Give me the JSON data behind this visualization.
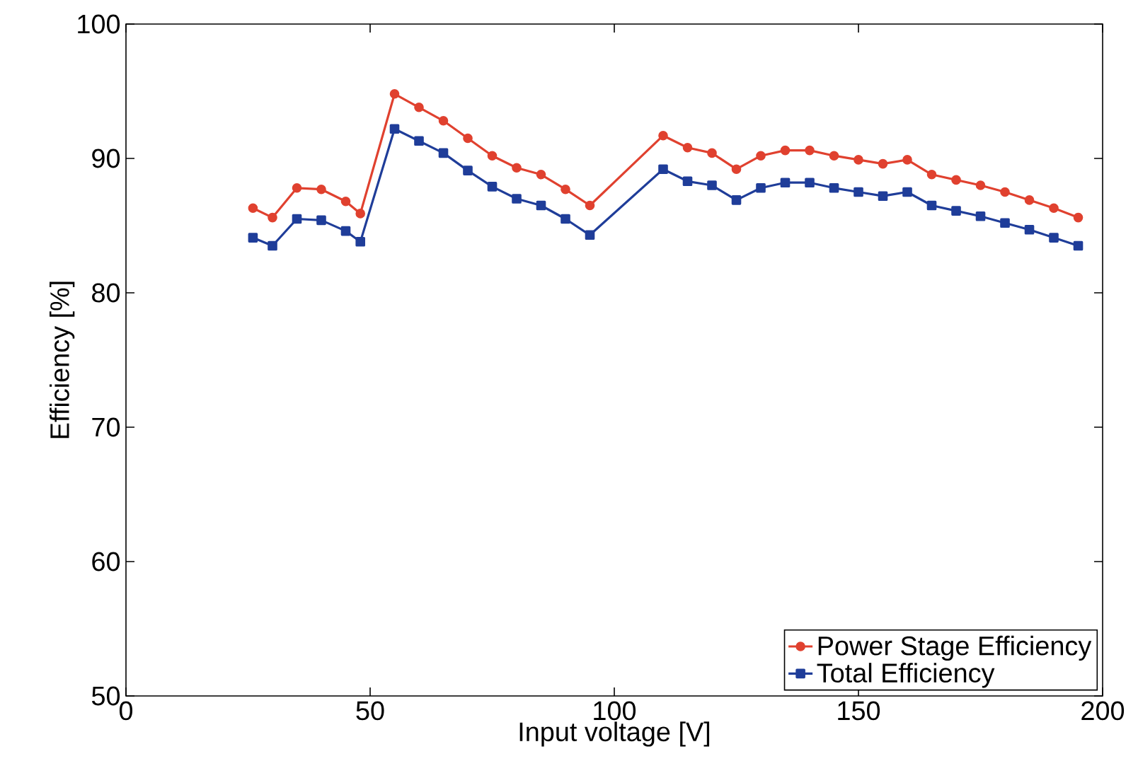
{
  "chart_data": {
    "type": "line",
    "xlabel": "Input voltage [V]",
    "ylabel": "Efficiency [%]",
    "x": [
      26,
      30,
      35,
      40,
      45,
      48,
      55,
      60,
      65,
      70,
      75,
      80,
      85,
      90,
      95,
      110,
      115,
      120,
      125,
      130,
      135,
      140,
      145,
      150,
      155,
      160,
      165,
      170,
      175,
      180,
      185,
      190,
      195
    ],
    "series": [
      {
        "name": "Power Stage Efficiency",
        "color": "#e0412f",
        "marker": "circle",
        "values": [
          86.3,
          85.6,
          87.8,
          87.7,
          86.8,
          85.9,
          94.8,
          93.8,
          92.8,
          91.5,
          90.2,
          89.3,
          88.8,
          87.7,
          86.5,
          91.7,
          90.8,
          90.4,
          89.2,
          90.2,
          90.6,
          90.6,
          90.2,
          89.9,
          89.6,
          89.9,
          88.8,
          88.4,
          88.0,
          87.5,
          86.9,
          86.3,
          85.6
        ]
      },
      {
        "name": "Total Efficiency",
        "color": "#1f3d99",
        "marker": "square",
        "values": [
          84.1,
          83.5,
          85.5,
          85.4,
          84.6,
          83.8,
          92.2,
          91.3,
          90.4,
          89.1,
          87.9,
          87.0,
          86.5,
          85.5,
          84.3,
          89.2,
          88.3,
          88.0,
          86.9,
          87.8,
          88.2,
          88.2,
          87.8,
          87.5,
          87.2,
          87.5,
          86.5,
          86.1,
          85.7,
          85.2,
          84.7,
          84.1,
          83.5
        ]
      }
    ],
    "xlim": [
      0,
      200
    ],
    "xticks": [
      0,
      50,
      100,
      150,
      200
    ],
    "ylim": [
      50,
      100
    ],
    "yticks": [
      50,
      60,
      70,
      80,
      90,
      100
    ],
    "legend": "bottom right",
    "grid": false,
    "line_style": "solid"
  }
}
